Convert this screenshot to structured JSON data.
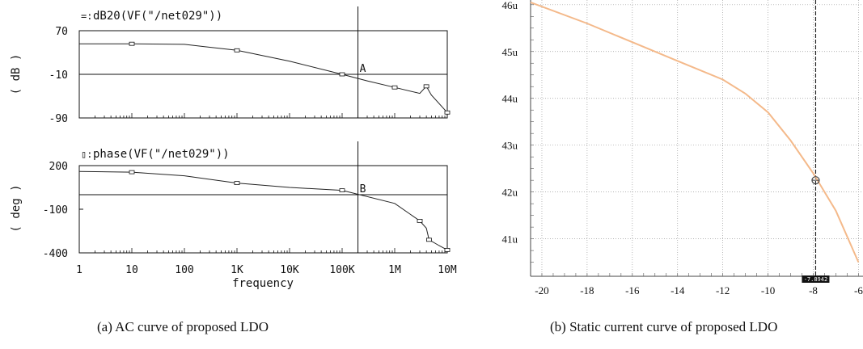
{
  "chart_data": [
    {
      "type": "line",
      "subplot": "ac-magnitude",
      "title": "dB20(VF(\"/net029\"))",
      "ylabel": "( dB )",
      "xscale": "log",
      "xlim": [
        1,
        10000000
      ],
      "ylim": [
        -90,
        70
      ],
      "yticks": [
        "70",
        "-10",
        "-90"
      ],
      "xticks": [
        "1",
        "10",
        "100",
        "1K",
        "10K",
        "100K",
        "1M",
        "10M"
      ],
      "series": [
        {
          "x": [
            1,
            10,
            100,
            1000,
            10000,
            100000,
            300000,
            1000000,
            3000000,
            4000000,
            5000000,
            10000000
          ],
          "y": [
            46,
            46,
            45,
            34,
            14,
            -10,
            -22,
            -34,
            -45,
            -32,
            -48,
            -80
          ]
        }
      ],
      "marker_x": 200000,
      "marker_label": "A",
      "reference_y": -10
    },
    {
      "type": "line",
      "subplot": "ac-phase",
      "title": "phase(VF(\"/net029\"))",
      "ylabel": "( deg )",
      "xlabel": "frequency",
      "xscale": "log",
      "xlim": [
        1,
        10000000
      ],
      "ylim": [
        -400,
        200
      ],
      "yticks": [
        "200",
        "-100",
        "-400"
      ],
      "xticks": [
        "1",
        "10",
        "100",
        "1K",
        "10K",
        "100K",
        "1M",
        "10M"
      ],
      "series": [
        {
          "x": [
            1,
            10,
            100,
            1000,
            10000,
            100000,
            1000000,
            3000000,
            4000000,
            4500000,
            7000000,
            10000000
          ],
          "y": [
            160,
            155,
            130,
            80,
            50,
            30,
            -60,
            -180,
            -230,
            -310,
            -350,
            -380
          ]
        }
      ],
      "marker_x": 200000,
      "marker_label": "B",
      "reference_y": 0
    },
    {
      "type": "line",
      "subplot": "static-current",
      "xlim": [
        -20.5,
        -5.8
      ],
      "ylim": [
        40.2,
        46.1
      ],
      "xticks": [
        "-20",
        "-18",
        "-16",
        "-14",
        "-12",
        "-10",
        "-8",
        "-6"
      ],
      "yticks": [
        "46u",
        "45u",
        "44u",
        "43u",
        "42u",
        "41u"
      ],
      "grid": true,
      "series": [
        {
          "x": [
            -20.5,
            -18,
            -16,
            -14,
            -12,
            -11,
            -10,
            -9,
            -8,
            -7,
            -6
          ],
          "y": [
            46.05,
            45.6,
            45.2,
            44.8,
            44.4,
            44.1,
            43.7,
            43.1,
            42.4,
            41.6,
            40.5
          ]
        }
      ],
      "marker_x": -7.8942,
      "marker_y": 42.25,
      "cursor_label": "-7.8942"
    }
  ],
  "captions": {
    "a": "(a) AC curve of proposed LDO",
    "b": "(b) Static current curve of proposed LDO"
  }
}
